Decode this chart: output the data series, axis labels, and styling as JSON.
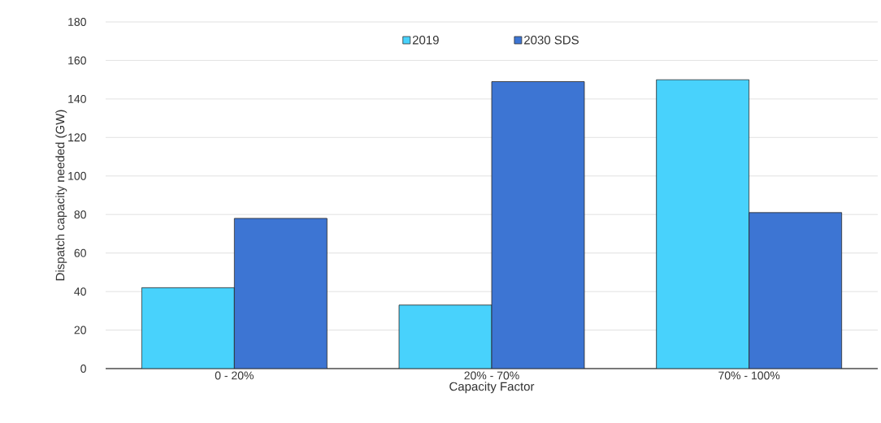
{
  "chart_data": {
    "type": "bar",
    "xlabel": "Capacity Factor",
    "ylabel": "Dispatch capacity needed (GW)",
    "categories": [
      "0 - 20%",
      "20% - 70%",
      "70% - 100%"
    ],
    "series": [
      {
        "name": "2019",
        "color": "#48d2fc",
        "values": [
          42,
          33,
          150
        ]
      },
      {
        "name": "2030 SDS",
        "color": "#3d75d3",
        "values": [
          78,
          149,
          81
        ]
      }
    ],
    "ylim": [
      0,
      180
    ],
    "yticks": [
      0,
      20,
      40,
      60,
      80,
      100,
      120,
      140,
      160,
      180
    ],
    "grid": "y",
    "legend": "top"
  }
}
